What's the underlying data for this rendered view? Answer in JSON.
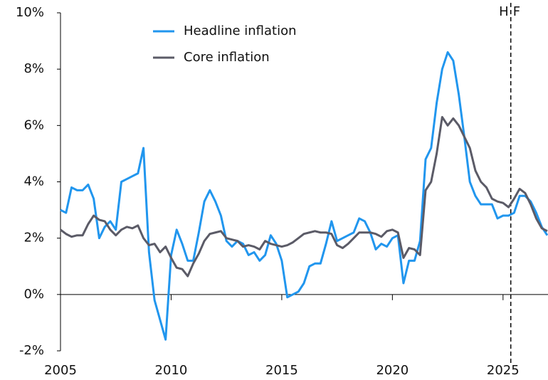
{
  "chart_data": {
    "type": "line",
    "x": [
      2005,
      2005.25,
      2005.5,
      2005.75,
      2006,
      2006.25,
      2006.5,
      2006.75,
      2007,
      2007.25,
      2007.5,
      2007.75,
      2008,
      2008.25,
      2008.5,
      2008.75,
      2009,
      2009.25,
      2009.5,
      2009.75,
      2010,
      2010.25,
      2010.5,
      2010.75,
      2011,
      2011.25,
      2011.5,
      2011.75,
      2012,
      2012.25,
      2012.5,
      2012.75,
      2013,
      2013.25,
      2013.5,
      2013.75,
      2014,
      2014.25,
      2014.5,
      2014.75,
      2015,
      2015.25,
      2015.5,
      2015.75,
      2016,
      2016.25,
      2016.5,
      2016.75,
      2017,
      2017.25,
      2017.5,
      2017.75,
      2018,
      2018.25,
      2018.5,
      2018.75,
      2019,
      2019.25,
      2019.5,
      2019.75,
      2020,
      2020.25,
      2020.5,
      2020.75,
      2021,
      2021.25,
      2021.5,
      2021.75,
      2022,
      2022.25,
      2022.5,
      2022.75,
      2023,
      2023.25,
      2023.5,
      2023.75,
      2024,
      2024.25,
      2024.5,
      2024.75,
      2025,
      2025.25,
      2025.5,
      2025.75,
      2026,
      2026.25,
      2026.5,
      2026.75,
      2027
    ],
    "series": [
      {
        "name": "Headline inflation",
        "color": "#2196ee",
        "values": [
          3.0,
          2.9,
          3.8,
          3.7,
          3.7,
          3.9,
          3.4,
          2.0,
          2.4,
          2.6,
          2.3,
          4.0,
          4.1,
          4.2,
          4.3,
          5.2,
          1.5,
          -0.2,
          -0.9,
          -1.6,
          1.4,
          2.3,
          1.8,
          1.2,
          1.2,
          2.2,
          3.3,
          3.7,
          3.3,
          2.8,
          1.9,
          1.7,
          1.9,
          1.8,
          1.4,
          1.5,
          1.2,
          1.4,
          2.1,
          1.8,
          1.2,
          -0.1,
          0.0,
          0.1,
          0.4,
          1.0,
          1.1,
          1.1,
          1.8,
          2.6,
          1.9,
          2.0,
          2.1,
          2.2,
          2.7,
          2.6,
          2.2,
          1.6,
          1.8,
          1.7,
          2.0,
          2.1,
          0.4,
          1.2,
          1.2,
          1.9,
          4.8,
          5.2,
          6.8,
          8.0,
          8.6,
          8.3,
          7.1,
          5.6,
          4.0,
          3.5,
          3.2,
          3.2,
          3.2,
          2.7,
          2.8,
          2.8,
          2.9,
          3.5,
          3.5,
          3.3,
          2.9,
          2.4,
          2.1
        ]
      },
      {
        "name": "Core inflation",
        "color": "#5b5b67",
        "values": [
          2.3,
          2.15,
          2.05,
          2.1,
          2.1,
          2.5,
          2.8,
          2.65,
          2.6,
          2.3,
          2.1,
          2.3,
          2.4,
          2.35,
          2.45,
          2.0,
          1.75,
          1.8,
          1.5,
          1.7,
          1.3,
          0.95,
          0.9,
          0.65,
          1.1,
          1.45,
          1.9,
          2.15,
          2.2,
          2.25,
          2.0,
          1.95,
          1.9,
          1.7,
          1.75,
          1.7,
          1.6,
          1.9,
          1.8,
          1.75,
          1.7,
          1.75,
          1.85,
          2.0,
          2.15,
          2.2,
          2.25,
          2.2,
          2.2,
          2.15,
          1.75,
          1.65,
          1.8,
          2.0,
          2.2,
          2.2,
          2.2,
          2.15,
          2.05,
          2.25,
          2.3,
          2.2,
          1.3,
          1.65,
          1.6,
          1.4,
          3.7,
          4.0,
          5.0,
          6.3,
          6.0,
          6.25,
          6.0,
          5.6,
          5.2,
          4.4,
          4.0,
          3.8,
          3.4,
          3.3,
          3.25,
          3.1,
          3.4,
          3.75,
          3.6,
          3.2,
          2.7,
          2.35,
          2.25
        ]
      }
    ],
    "xlim": [
      2005,
      2027
    ],
    "xticks": [
      2005,
      2010,
      2015,
      2020,
      2025
    ],
    "ylim": [
      -2,
      10
    ],
    "yticks": [
      {
        "value": -2,
        "label": "-2%"
      },
      {
        "value": 0,
        "label": "0%"
      },
      {
        "value": 2,
        "label": "2%"
      },
      {
        "value": 4,
        "label": "4%"
      },
      {
        "value": 6,
        "label": "6%"
      },
      {
        "value": 8,
        "label": "8%"
      },
      {
        "value": 10,
        "label": "10%"
      }
    ],
    "forecast_line": {
      "x": 2025.35,
      "labels": [
        "H",
        "F"
      ]
    },
    "legend": "top-left"
  }
}
